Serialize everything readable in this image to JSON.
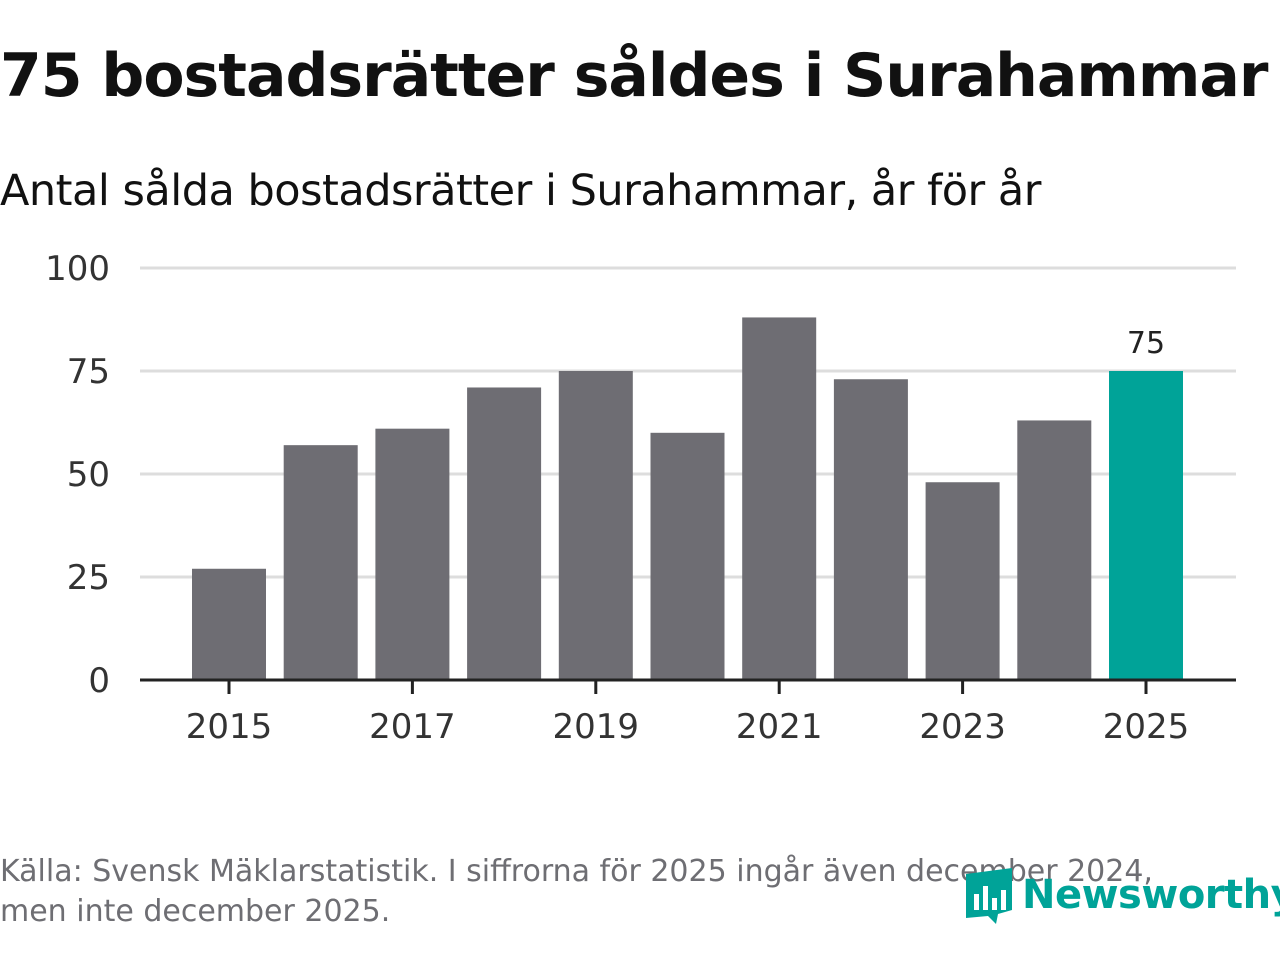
{
  "header": {
    "title": "75 bostadsrätter såldes i Surahammar",
    "subtitle": "Antal sålda bostadsrätter i Surahammar, år för år"
  },
  "footer": {
    "source_line1": "Källa: Svensk Mäklarstatistik. I siffrorna för 2025 ingår även december 2024,",
    "source_line2": "men inte december 2025."
  },
  "logo": {
    "text": "Newsworthy",
    "icon": "newsworthy-bar-chart-icon"
  },
  "colors": {
    "bar": "#6e6d73",
    "highlight": "#00a398",
    "grid": "#dddddd",
    "axis": "#222222",
    "tick_text": "#333333"
  },
  "chart_data": {
    "type": "bar",
    "title": "75 bostadsrätter såldes i Surahammar",
    "subtitle": "Antal sålda bostadsrätter i Surahammar, år för år",
    "xlabel": "",
    "ylabel": "",
    "categories": [
      "2015",
      "2016",
      "2017",
      "2018",
      "2019",
      "2020",
      "2021",
      "2022",
      "2023",
      "2024",
      "2025"
    ],
    "values": [
      27,
      57,
      61,
      71,
      75,
      60,
      88,
      73,
      48,
      63,
      75
    ],
    "highlight_index": 10,
    "highlight_label": "75",
    "ylim": [
      0,
      100
    ],
    "yticks": [
      0,
      25,
      50,
      75,
      100
    ],
    "xtick_labels": [
      "2015",
      "2017",
      "2019",
      "2021",
      "2023",
      "2025"
    ],
    "grid": true,
    "legend": "none"
  }
}
